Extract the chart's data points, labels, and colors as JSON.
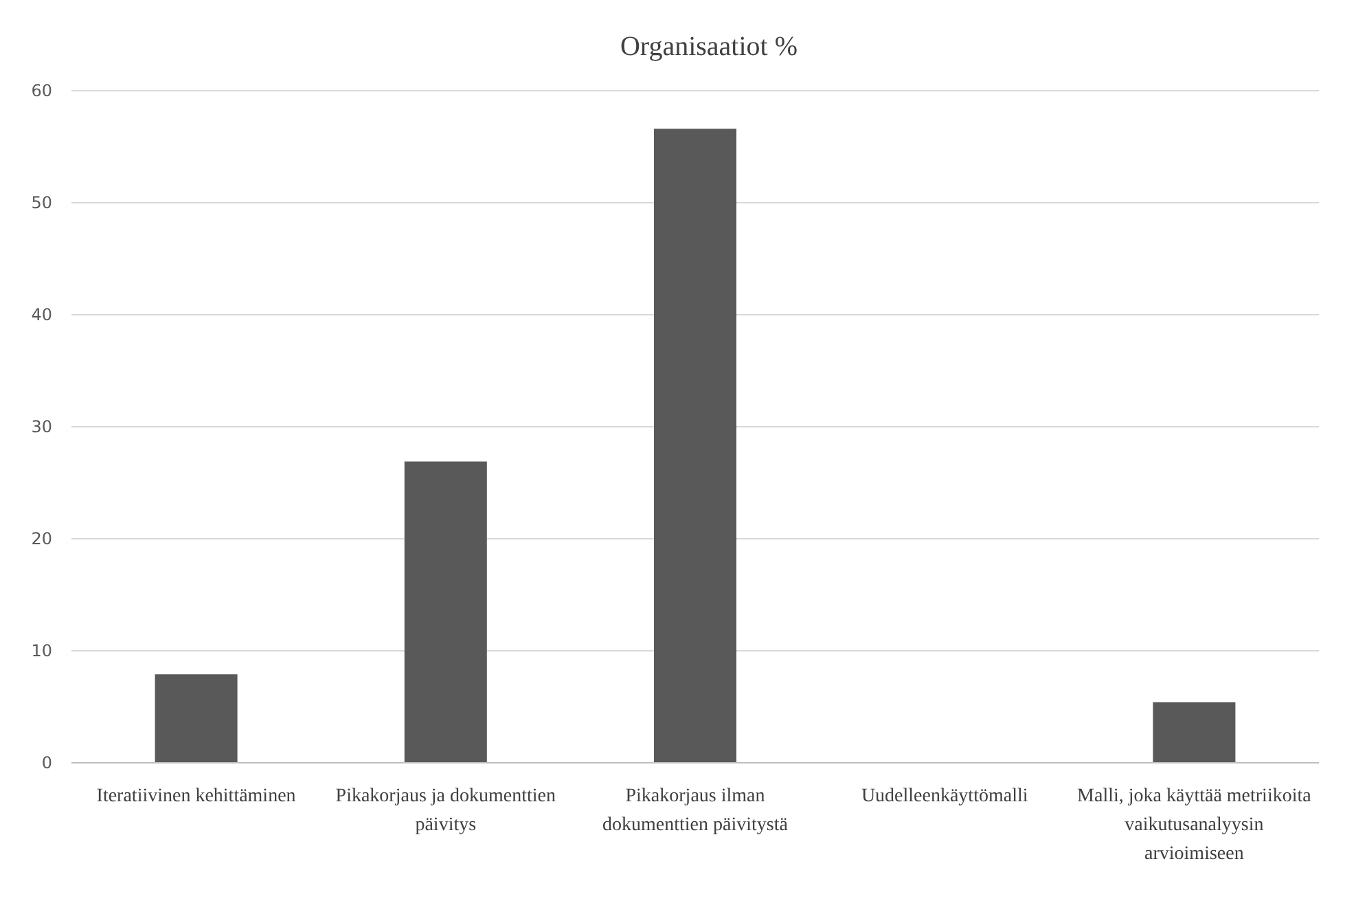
{
  "chart_data": {
    "type": "bar",
    "title": "Organisaatiot %",
    "categories": [
      "Iteratiivinen kehittäminen",
      "Pikakorjaus ja dokumenttien päivitys",
      "Pikakorjaus ilman dokumenttien päivitystä",
      "Uudelleenkäyttömalli",
      "Malli, joka käyttää metriikoita vaikutusanalyysin arvioimiseen"
    ],
    "values": [
      7.9,
      26.9,
      56.6,
      0,
      5.4
    ],
    "color": "#595959",
    "ylim": [
      0,
      60
    ],
    "yticks": [
      0,
      10,
      20,
      30,
      40,
      50,
      60
    ],
    "grid": "y"
  }
}
